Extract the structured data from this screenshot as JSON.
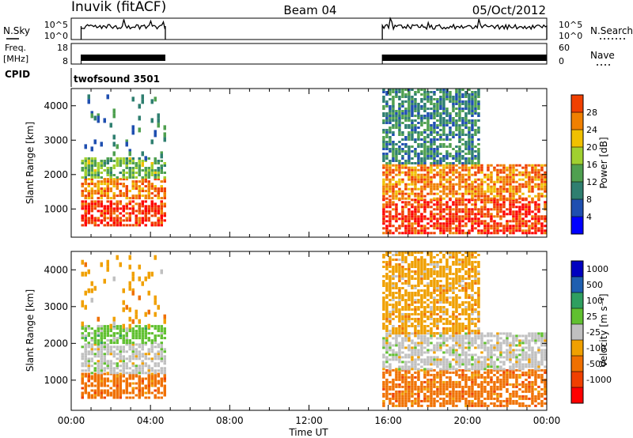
{
  "header": {
    "station": "Inuvik (fitACF)",
    "beam": "Beam 04",
    "date": "05/Oct/2012"
  },
  "noise_panel": {
    "left_label": "N.Sky",
    "right_label": "N.Search",
    "left_ticks": [
      "10^5",
      "10^0"
    ],
    "right_ticks": [
      "10^5",
      "10^0"
    ]
  },
  "freq_panel": {
    "left_label_1": "Freq.",
    "left_label_2": "[MHz]",
    "right_label": "Nave",
    "left_ticks": [
      "18",
      "8"
    ],
    "right_ticks": [
      "60",
      "0"
    ]
  },
  "cpid": {
    "label": "CPID",
    "value": "twofsound 3501"
  },
  "time_axis": {
    "label": "Time UT",
    "ticks": [
      "00:00",
      "04:00",
      "08:00",
      "12:00",
      "16:00",
      "20:00",
      "00:00"
    ]
  },
  "colors": {
    "power_scale": [
      "#0000ff",
      "#1f4fb0",
      "#2f7f70",
      "#4fa050",
      "#a0d030",
      "#f0c000",
      "#f08000",
      "#f04000",
      "#ff0000"
    ],
    "velocity_scale": [
      "#0000c0",
      "#1f5fb0",
      "#2f9f60",
      "#60c030",
      "#c0c0c0",
      "#f0a000",
      "#f07000",
      "#f04000",
      "#ff0000"
    ]
  },
  "chart_data": [
    {
      "type": "heatmap",
      "panel": "power",
      "ylabel": "Slant Range [km]",
      "xlabel": "",
      "x_hours_range": [
        0,
        24
      ],
      "ylim": [
        180,
        4500
      ],
      "y_ticks": [
        "1000",
        "2000",
        "3000",
        "4000"
      ],
      "colorbar_label": "Power [dB]",
      "colorbar_ticks": [
        "4",
        "8",
        "12",
        "16",
        "20",
        "24",
        "28"
      ],
      "colorbar_range": [
        0,
        30
      ],
      "data_intervals_hours": [
        [
          0.5,
          4.75
        ],
        [
          15.7,
          24.0
        ]
      ],
      "regions": [
        {
          "t": [
            0.5,
            4.75
          ],
          "range_km": [
            550,
            1250
          ],
          "value_db": 26
        },
        {
          "t": [
            0.5,
            4.75
          ],
          "range_km": [
            1300,
            1900
          ],
          "value_db": 22
        },
        {
          "t": [
            0.5,
            4.75
          ],
          "range_km": [
            1900,
            2500
          ],
          "value_db": 13
        },
        {
          "t": [
            0.5,
            4.75
          ],
          "range_km": [
            2500,
            4400
          ],
          "value_db": 8
        },
        {
          "t": [
            15.7,
            24.0
          ],
          "range_km": [
            300,
            1300
          ],
          "value_db": 26
        },
        {
          "t": [
            15.7,
            24.0
          ],
          "range_km": [
            1300,
            2300
          ],
          "value_db": 22
        },
        {
          "t": [
            15.7,
            20.5
          ],
          "range_km": [
            2300,
            4500
          ],
          "value_db": 9
        }
      ]
    },
    {
      "type": "heatmap",
      "panel": "velocity",
      "ylabel": "Slant Range [km]",
      "xlabel": "Time UT",
      "x_hours_range": [
        0,
        24
      ],
      "ylim": [
        180,
        4500
      ],
      "y_ticks": [
        "1000",
        "2000",
        "3000",
        "4000"
      ],
      "colorbar_label": "Velocity [m s⁻¹]",
      "colorbar_ticks": [
        "1000",
        "500",
        "100",
        "25",
        "-25",
        "-100",
        "-500",
        "-1000"
      ],
      "data_intervals_hours": [
        [
          0.5,
          4.75
        ],
        [
          15.7,
          24.0
        ]
      ],
      "regions": [
        {
          "t": [
            0.5,
            4.75
          ],
          "range_km": [
            550,
            1200
          ],
          "value_ms": -150
        },
        {
          "t": [
            0.5,
            4.75
          ],
          "range_km": [
            1200,
            2000
          ],
          "value_ms": 0
        },
        {
          "t": [
            0.5,
            4.75
          ],
          "range_km": [
            2000,
            2500
          ],
          "value_ms": 60
        },
        {
          "t": [
            0.5,
            4.75
          ],
          "range_km": [
            2500,
            4400
          ],
          "value_ms": -80
        },
        {
          "t": [
            15.7,
            24.0
          ],
          "range_km": [
            300,
            1300
          ],
          "value_ms": -200
        },
        {
          "t": [
            15.7,
            24.0
          ],
          "range_km": [
            1300,
            2300
          ],
          "value_ms": 0
        },
        {
          "t": [
            15.7,
            20.5
          ],
          "range_km": [
            2300,
            4500
          ],
          "value_ms": -50
        }
      ]
    }
  ]
}
